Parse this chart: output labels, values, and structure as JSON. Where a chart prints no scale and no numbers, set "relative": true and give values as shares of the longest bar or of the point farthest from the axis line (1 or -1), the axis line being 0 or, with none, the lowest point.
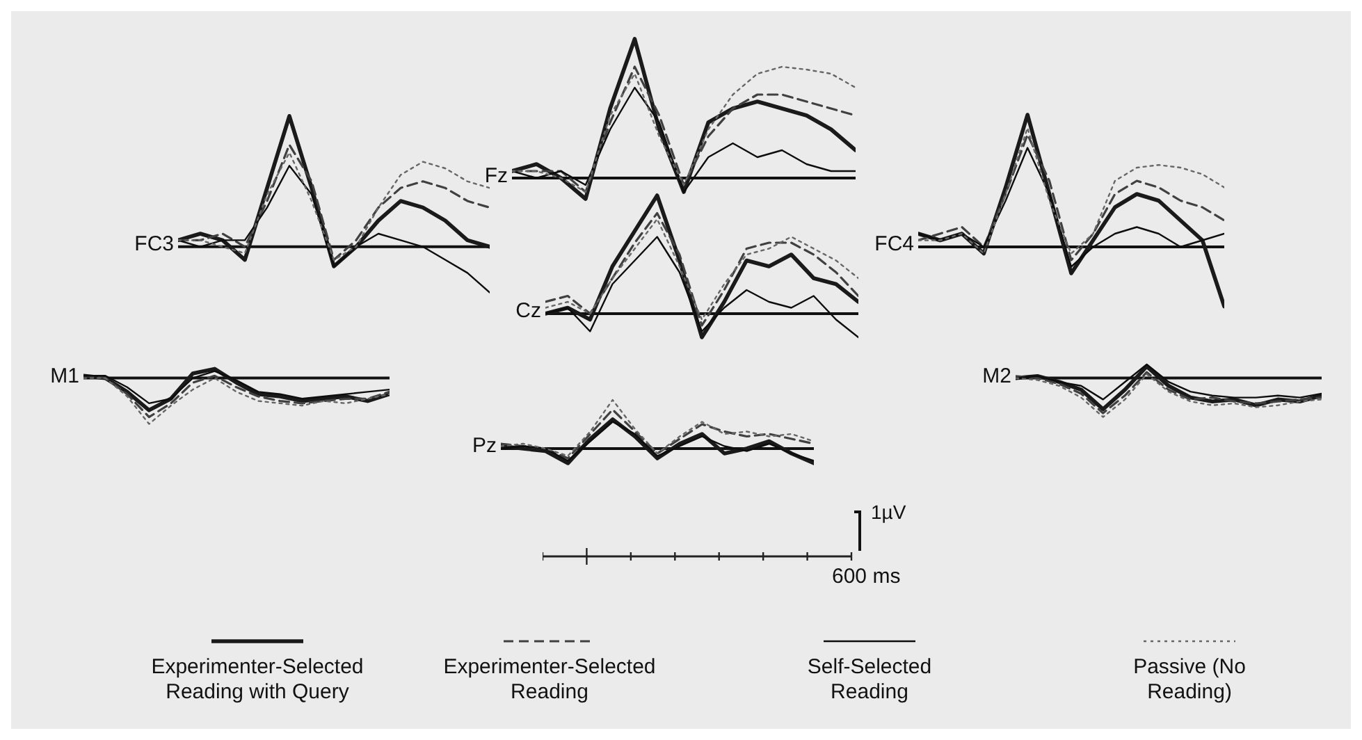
{
  "chart_data": [
    {
      "type": "line",
      "title": "FC3",
      "relative": true,
      "categories": [
        null,
        null,
        null,
        null,
        null,
        null,
        null,
        null,
        null,
        null,
        null,
        null,
        null,
        null,
        null
      ],
      "series": [
        {
          "color": "#1a1a1a",
          "line_style": "solid",
          "values": [
            0.05,
            0.1,
            0.05,
            -0.1,
            0.45,
            1.0,
            0.45,
            -0.15,
            0.0,
            0.2,
            0.35,
            0.3,
            0.2,
            0.05,
            0.0
          ]
        },
        {
          "color": "#404040",
          "line_style": "dashed",
          "values": [
            0.05,
            0.05,
            0.1,
            0.0,
            0.35,
            0.78,
            0.5,
            -0.1,
            0.05,
            0.3,
            0.45,
            0.5,
            0.45,
            0.35,
            0.3
          ]
        },
        {
          "color": "#0d0d0d",
          "line_style": "solid",
          "values": [
            0.05,
            0.0,
            0.05,
            0.05,
            0.3,
            0.62,
            0.4,
            -0.15,
            0.0,
            0.1,
            0.05,
            0.0,
            -0.1,
            -0.2,
            -0.35
          ]
        },
        {
          "color": "#666666",
          "line_style": "dotted",
          "values": [
            0.05,
            0.05,
            0.0,
            -0.05,
            0.4,
            0.72,
            0.35,
            -0.1,
            0.0,
            0.3,
            0.55,
            0.65,
            0.6,
            0.5,
            0.45
          ]
        }
      ]
    },
    {
      "type": "line",
      "title": "Fz",
      "relative": true,
      "categories": [
        null,
        null,
        null,
        null,
        null,
        null,
        null,
        null,
        null,
        null,
        null,
        null,
        null,
        null,
        null
      ],
      "series": [
        {
          "color": "#1a1a1a",
          "line_style": "solid",
          "values": [
            0.05,
            0.1,
            0.0,
            -0.15,
            0.5,
            1.0,
            0.35,
            -0.1,
            0.4,
            0.5,
            0.55,
            0.5,
            0.45,
            0.35,
            0.2
          ]
        },
        {
          "color": "#404040",
          "line_style": "dashed",
          "values": [
            0.05,
            0.05,
            0.05,
            -0.1,
            0.4,
            0.8,
            0.45,
            -0.05,
            0.3,
            0.5,
            0.6,
            0.6,
            0.55,
            0.5,
            0.45
          ]
        },
        {
          "color": "#0d0d0d",
          "line_style": "solid",
          "values": [
            0.05,
            0.0,
            0.05,
            -0.05,
            0.35,
            0.65,
            0.4,
            -0.1,
            0.15,
            0.25,
            0.15,
            0.2,
            0.1,
            0.05,
            0.05
          ]
        },
        {
          "color": "#666666",
          "line_style": "dotted",
          "values": [
            0.05,
            0.05,
            0.0,
            -0.1,
            0.45,
            0.75,
            0.3,
            -0.05,
            0.35,
            0.6,
            0.75,
            0.8,
            0.78,
            0.75,
            0.65
          ]
        }
      ]
    },
    {
      "type": "line",
      "title": "FC4",
      "relative": true,
      "categories": [
        null,
        null,
        null,
        null,
        null,
        null,
        null,
        null,
        null,
        null,
        null,
        null,
        null,
        null,
        null
      ],
      "series": [
        {
          "color": "#1a1a1a",
          "line_style": "solid",
          "values": [
            0.1,
            0.05,
            0.1,
            -0.05,
            0.45,
            1.0,
            0.4,
            -0.2,
            0.05,
            0.3,
            0.4,
            0.35,
            0.2,
            0.05,
            -0.45
          ]
        },
        {
          "color": "#404040",
          "line_style": "dashed",
          "values": [
            0.05,
            0.1,
            0.15,
            0.0,
            0.4,
            0.85,
            0.5,
            -0.1,
            0.1,
            0.4,
            0.5,
            0.45,
            0.35,
            0.3,
            0.2
          ]
        },
        {
          "color": "#0d0d0d",
          "line_style": "solid",
          "values": [
            0.1,
            0.05,
            0.1,
            0.0,
            0.35,
            0.75,
            0.4,
            -0.15,
            0.0,
            0.1,
            0.15,
            0.1,
            0.0,
            0.05,
            0.1
          ]
        },
        {
          "color": "#666666",
          "line_style": "dotted",
          "values": [
            0.05,
            0.05,
            0.1,
            -0.05,
            0.4,
            0.9,
            0.35,
            -0.05,
            0.1,
            0.5,
            0.6,
            0.62,
            0.6,
            0.55,
            0.45
          ]
        }
      ]
    },
    {
      "type": "line",
      "title": "Cz",
      "relative": true,
      "categories": [
        null,
        null,
        null,
        null,
        null,
        null,
        null,
        null,
        null,
        null,
        null,
        null,
        null,
        null,
        null
      ],
      "series": [
        {
          "color": "#1a1a1a",
          "line_style": "solid",
          "values": [
            0.0,
            0.05,
            -0.05,
            0.4,
            0.7,
            1.0,
            0.45,
            -0.2,
            0.1,
            0.45,
            0.4,
            0.5,
            0.3,
            0.25,
            0.1
          ]
        },
        {
          "color": "#404040",
          "line_style": "dashed",
          "values": [
            0.1,
            0.15,
            0.0,
            0.3,
            0.6,
            0.85,
            0.5,
            -0.1,
            0.2,
            0.55,
            0.6,
            0.6,
            0.5,
            0.35,
            0.15
          ]
        },
        {
          "color": "#0d0d0d",
          "line_style": "solid",
          "values": [
            0.0,
            0.05,
            -0.15,
            0.25,
            0.45,
            0.65,
            0.35,
            -0.15,
            0.05,
            0.2,
            0.1,
            0.05,
            0.15,
            -0.05,
            -0.2
          ]
        },
        {
          "color": "#666666",
          "line_style": "dotted",
          "values": [
            0.05,
            0.1,
            0.0,
            0.3,
            0.55,
            0.8,
            0.4,
            -0.05,
            0.25,
            0.5,
            0.55,
            0.65,
            0.55,
            0.45,
            0.3
          ]
        }
      ]
    },
    {
      "type": "line",
      "title": "M1",
      "relative": true,
      "categories": [
        null,
        null,
        null,
        null,
        null,
        null,
        null,
        null,
        null,
        null,
        null,
        null,
        null,
        null,
        null
      ],
      "series": [
        {
          "color": "#1a1a1a",
          "line_style": "solid",
          "values": [
            0.05,
            0.0,
            -0.3,
            -0.7,
            -0.45,
            0.1,
            0.2,
            -0.1,
            -0.35,
            -0.4,
            -0.5,
            -0.45,
            -0.4,
            -0.5,
            -0.35
          ]
        },
        {
          "color": "#404040",
          "line_style": "dashed",
          "values": [
            0.05,
            0.0,
            -0.35,
            -0.85,
            -0.55,
            -0.1,
            0.05,
            -0.2,
            -0.4,
            -0.5,
            -0.55,
            -0.5,
            -0.45,
            -0.45,
            -0.3
          ]
        },
        {
          "color": "#0d0d0d",
          "line_style": "solid",
          "values": [
            0.05,
            0.05,
            -0.2,
            -0.55,
            -0.45,
            0.0,
            0.15,
            -0.05,
            -0.3,
            -0.35,
            -0.45,
            -0.4,
            -0.35,
            -0.3,
            -0.25
          ]
        },
        {
          "color": "#666666",
          "line_style": "dotted",
          "values": [
            0.0,
            0.0,
            -0.4,
            -1.0,
            -0.6,
            -0.25,
            0.0,
            -0.3,
            -0.5,
            -0.55,
            -0.6,
            -0.5,
            -0.55,
            -0.45,
            -0.35
          ]
        }
      ]
    },
    {
      "type": "line",
      "title": "M2",
      "relative": true,
      "categories": [
        null,
        null,
        null,
        null,
        null,
        null,
        null,
        null,
        null,
        null,
        null,
        null,
        null,
        null,
        null
      ],
      "series": [
        {
          "color": "#1a1a1a",
          "line_style": "solid",
          "values": [
            0.0,
            0.05,
            -0.1,
            -0.3,
            -0.8,
            -0.3,
            0.3,
            -0.2,
            -0.5,
            -0.6,
            -0.55,
            -0.7,
            -0.55,
            -0.6,
            -0.45
          ]
        },
        {
          "color": "#404040",
          "line_style": "dashed",
          "values": [
            0.05,
            0.0,
            -0.15,
            -0.4,
            -0.9,
            -0.45,
            0.15,
            -0.3,
            -0.55,
            -0.5,
            -0.6,
            -0.65,
            -0.6,
            -0.55,
            -0.5
          ]
        },
        {
          "color": "#0d0d0d",
          "line_style": "solid",
          "values": [
            0.0,
            0.05,
            -0.1,
            -0.2,
            -0.55,
            -0.1,
            0.35,
            -0.1,
            -0.35,
            -0.45,
            -0.5,
            -0.5,
            -0.45,
            -0.5,
            -0.4
          ]
        },
        {
          "color": "#666666",
          "line_style": "dotted",
          "values": [
            0.0,
            -0.05,
            -0.2,
            -0.5,
            -1.0,
            -0.55,
            0.1,
            -0.35,
            -0.6,
            -0.7,
            -0.65,
            -0.75,
            -0.7,
            -0.6,
            -0.55
          ]
        }
      ]
    },
    {
      "type": "line",
      "title": "Pz",
      "relative": true,
      "legend": "bottom",
      "annotations": [
        "1µV",
        "600 ms"
      ],
      "categories": [
        null,
        null,
        null,
        null,
        null,
        null,
        null,
        null,
        null,
        null,
        null,
        null,
        null,
        null,
        null
      ],
      "series": [
        {
          "name": "Experimenter-Selected Reading with Query",
          "color": "#1a1a1a",
          "line_style": "solid",
          "values": [
            0.05,
            0.0,
            -0.05,
            -0.3,
            0.2,
            0.6,
            0.25,
            -0.2,
            0.1,
            0.3,
            -0.1,
            0.0,
            0.15,
            -0.1,
            -0.3
          ]
        },
        {
          "name": "Experimenter-Selected Reading",
          "color": "#404040",
          "line_style": "dashed",
          "values": [
            0.1,
            0.05,
            0.0,
            -0.2,
            0.3,
            0.8,
            0.35,
            -0.1,
            0.2,
            0.5,
            0.35,
            0.25,
            0.3,
            0.2,
            0.1
          ]
        },
        {
          "name": "Self-Selected Reading",
          "color": "#0d0d0d",
          "line_style": "solid",
          "values": [
            0.0,
            0.05,
            0.0,
            -0.25,
            0.15,
            0.55,
            0.3,
            -0.15,
            0.05,
            0.25,
            0.05,
            -0.05,
            0.1,
            -0.1,
            -0.25
          ]
        },
        {
          "name": "Passive (No Reading)",
          "color": "#666666",
          "line_style": "dotted",
          "values": [
            0.05,
            0.1,
            0.0,
            -0.15,
            0.35,
            1.0,
            0.4,
            -0.1,
            0.25,
            0.55,
            0.3,
            0.35,
            0.25,
            0.3,
            0.15
          ]
        }
      ]
    }
  ]
}
